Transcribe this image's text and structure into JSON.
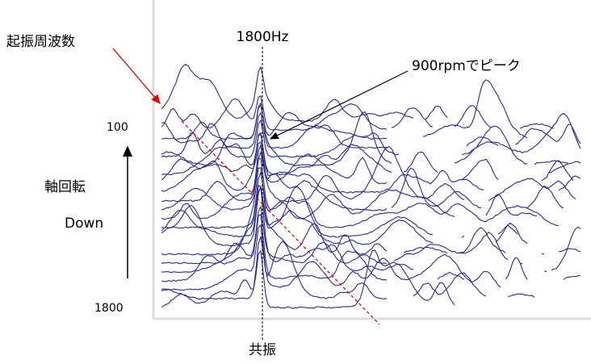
{
  "labels": {
    "excitation_frequency": "起振周波数",
    "frequency_marker": "1800Hz",
    "peak_note": "900rpmでピーク",
    "rpm_top": "100",
    "axis_title": "軸回転",
    "direction": "Down",
    "rpm_bottom": "1800",
    "resonance": "共振"
  }
}
